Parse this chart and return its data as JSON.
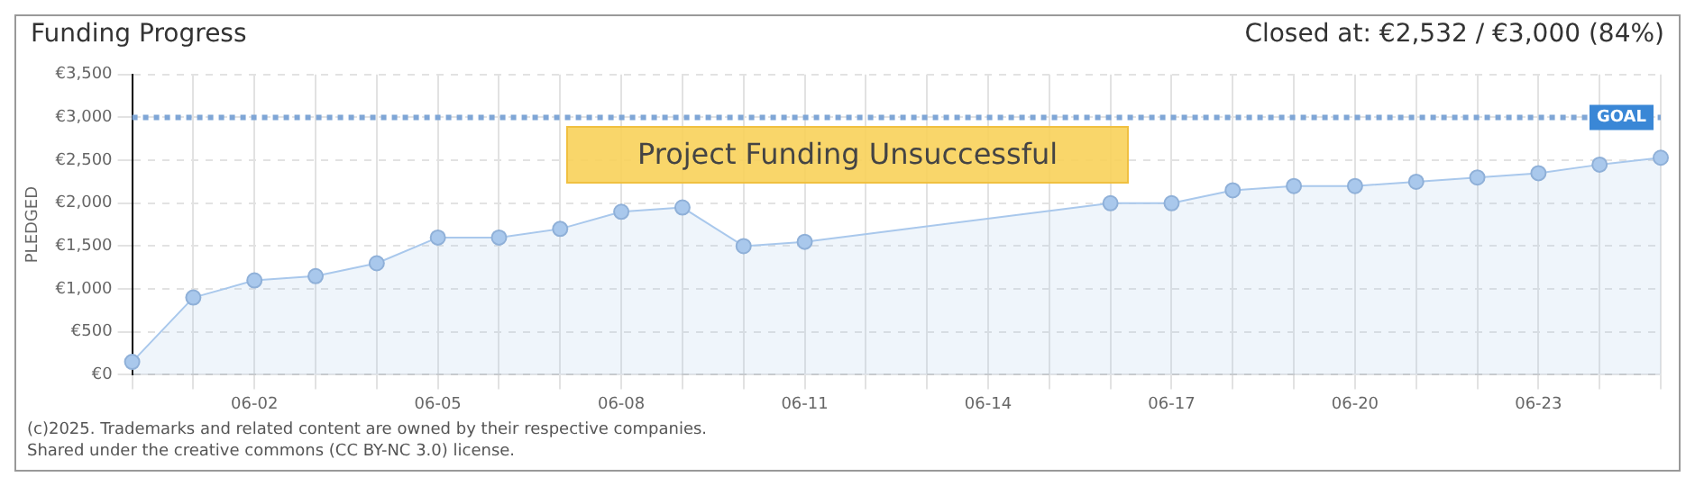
{
  "chart_data": {
    "type": "area",
    "title": "Funding Progress",
    "subtitle": "Closed at: €2,532 / €3,000 (84%)",
    "ylabel": "PLEDGED",
    "categories": [
      null,
      null,
      "06-02",
      null,
      null,
      "06-05",
      null,
      null,
      "06-08",
      null,
      null,
      "06-11",
      null,
      null,
      "06-14",
      null,
      null,
      "06-17",
      null,
      null,
      "06-20",
      null,
      null,
      "06-23",
      null,
      null
    ],
    "series": [
      {
        "color": "#a9c8ec",
        "values": [
          150,
          900,
          1100,
          1150,
          1300,
          1600,
          1600,
          1700,
          1900,
          1950,
          1500,
          1550,
          null,
          null,
          null,
          null,
          2000,
          2000,
          2150,
          2200,
          2200,
          2250,
          2300,
          2350,
          2450,
          2530
        ]
      }
    ],
    "ylim": [
      0,
      3500
    ],
    "yticks": [
      {
        "value": 0,
        "label": "€0"
      },
      {
        "value": 500,
        "label": "€500"
      },
      {
        "value": 1000,
        "label": "€1,000"
      },
      {
        "value": 1500,
        "label": "€1,500"
      },
      {
        "value": 2000,
        "label": "€2,000"
      },
      {
        "value": 2500,
        "label": "€2,500"
      },
      {
        "value": 3000,
        "label": "€3,000"
      },
      {
        "value": 3500,
        "label": "€3,500"
      }
    ],
    "grid": true,
    "marker": "circle",
    "ref_lines": [
      {
        "axis": "y",
        "value": 3000,
        "label": "GOAL",
        "color": "#7fa6d6",
        "line_style": "dotted"
      }
    ],
    "annotations": [
      "Project Funding Unsuccessful",
      "(c)2025. Trademarks and related content are owned by their respective companies.",
      "Shared under the creative commons (CC BY-NC 3.0) license."
    ]
  }
}
